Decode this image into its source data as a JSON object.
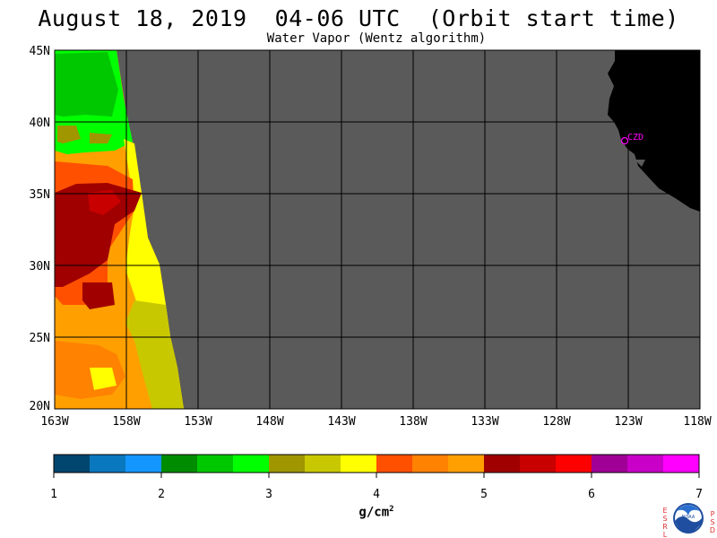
{
  "header": {
    "title": "August 18, 2019  04-06 UTC  (Orbit start time)",
    "subtitle": "Water Vapor (Wentz algorithm)"
  },
  "map": {
    "lat_range": [
      20,
      45
    ],
    "lon_range": [
      -163,
      -118
    ],
    "lat_labels": [
      "45N",
      "40N",
      "35N",
      "30N",
      "25N",
      "20N"
    ],
    "lon_labels": [
      "163W",
      "158W",
      "153W",
      "148W",
      "143W",
      "138W",
      "133W",
      "128W",
      "123W",
      "118W"
    ],
    "station_label": "CZD",
    "colors": {
      "no_data": "#5a5a5a",
      "land": "#000000",
      "station": "#ff00ff",
      "grid": "#000000"
    }
  },
  "colorbar": {
    "range": [
      1,
      7
    ],
    "tick_labels": [
      "1",
      "2",
      "3",
      "4",
      "5",
      "6",
      "7"
    ],
    "unit_label": "g/cm",
    "unit_exponent": "2",
    "colors": [
      "#00466e",
      "#0a78be",
      "#1496ff",
      "#008c00",
      "#00c800",
      "#00ff00",
      "#a09600",
      "#c8c800",
      "#ffff00",
      "#ff5000",
      "#ff8200",
      "#ffa000",
      "#a00000",
      "#c80000",
      "#ff0000",
      "#a00096",
      "#c800c8",
      "#ff00ff"
    ]
  },
  "logo": {
    "left_letters": "ESRL",
    "right_letters": "PSD",
    "center_text": "NOAA"
  }
}
